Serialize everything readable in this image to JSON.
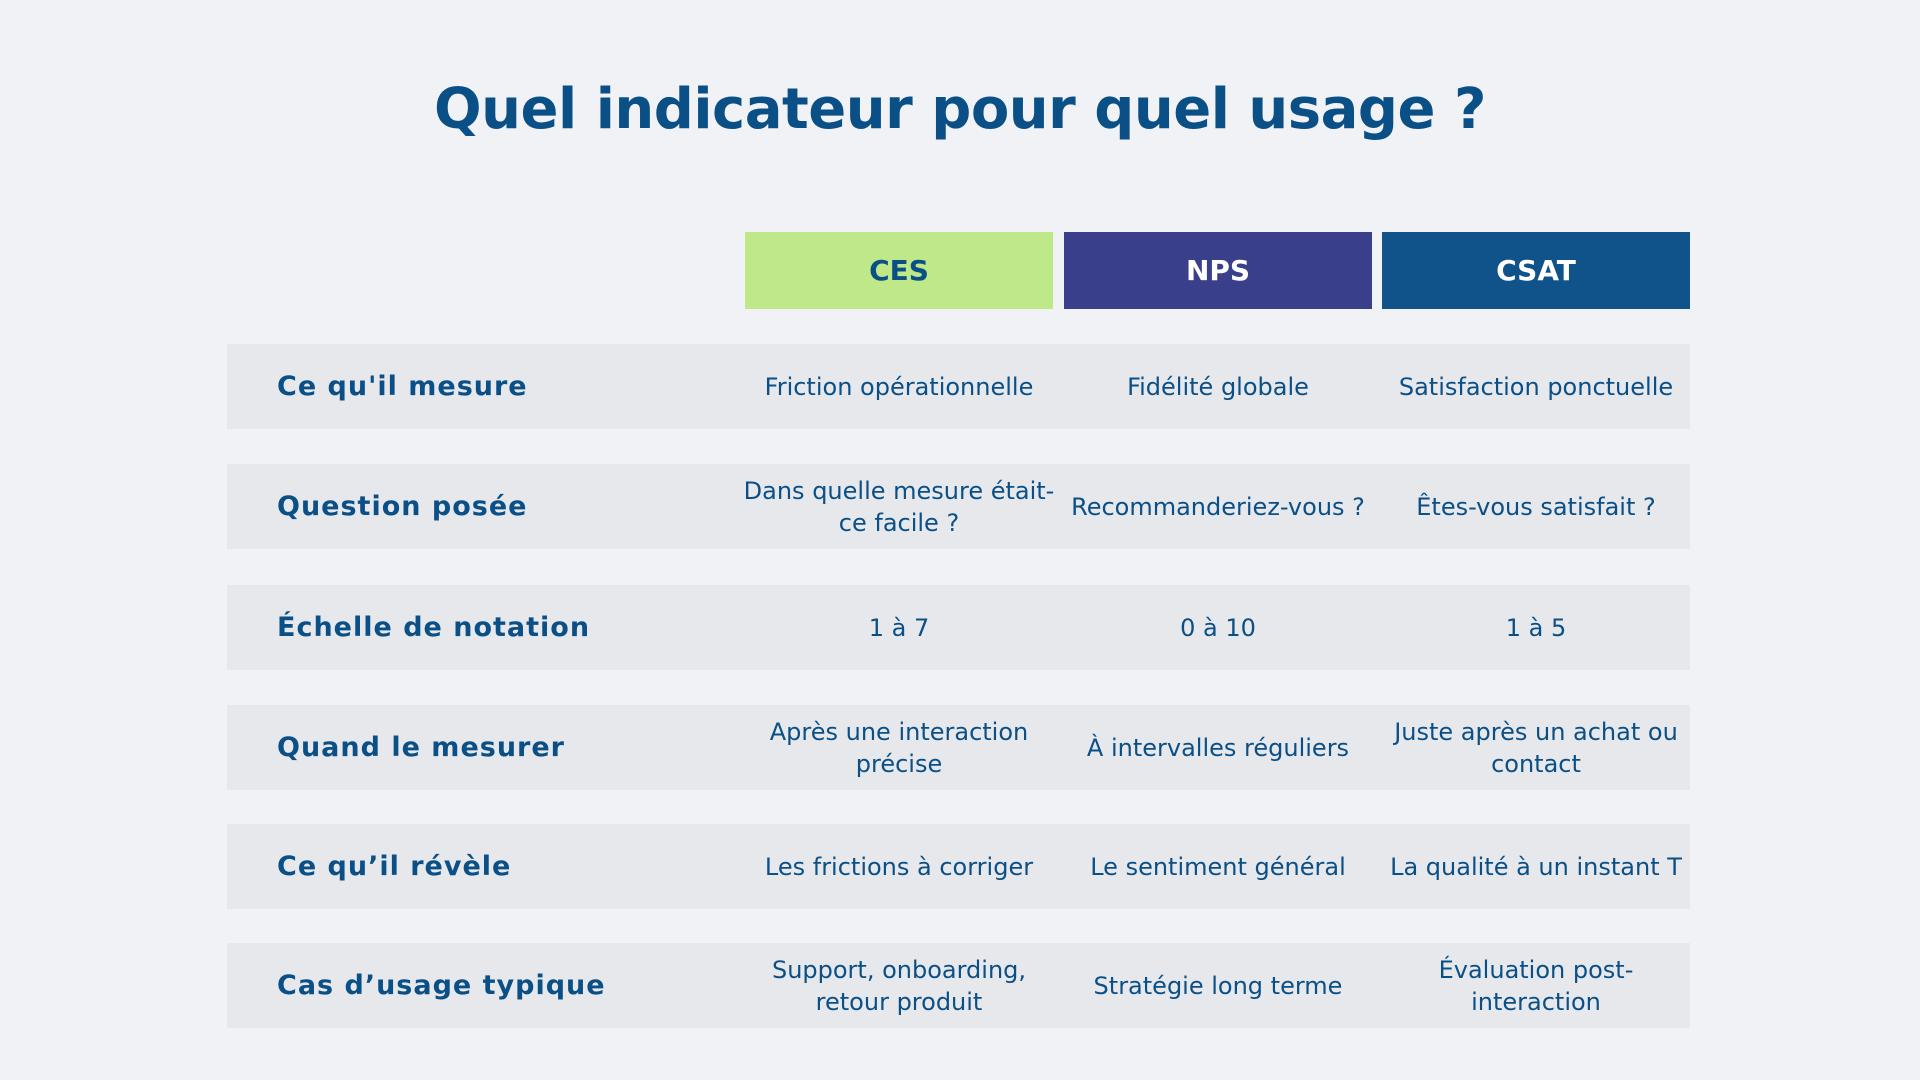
{
  "title": "Quel indicateur pour quel usage ?",
  "columns": [
    {
      "label": "CES",
      "bg": "#bfe888",
      "fg": "#0b4f87"
    },
    {
      "label": "NPS",
      "bg": "#3a3f8b",
      "fg": "#ffffff"
    },
    {
      "label": "CSAT",
      "bg": "#10528a",
      "fg": "#ffffff"
    }
  ],
  "rows": [
    {
      "label": "Ce qu'il mesure",
      "cells": [
        "Friction opérationnelle",
        "Fidélité globale",
        "Satisfaction ponctuelle"
      ]
    },
    {
      "label": "Question posée",
      "cells": [
        "Dans quelle mesure était-ce facile ?",
        "Recommanderiez-vous ?",
        "Êtes-vous satisfait ?"
      ]
    },
    {
      "label": "Échelle de notation",
      "cells": [
        "1 à 7",
        "0 à 10",
        "1 à 5"
      ]
    },
    {
      "label": "Quand le mesurer",
      "cells": [
        "Après une interaction précise",
        "À intervalles réguliers",
        "Juste après un achat ou contact"
      ]
    },
    {
      "label": "Ce qu’il révèle",
      "cells": [
        "Les frictions à corriger",
        "Le sentiment général",
        "La qualité à un instant T"
      ]
    },
    {
      "label": "Cas d’usage typique",
      "cells": [
        "Support, onboarding, retour produit",
        "Stratégie long terme",
        "Évaluation post-interaction"
      ]
    }
  ]
}
